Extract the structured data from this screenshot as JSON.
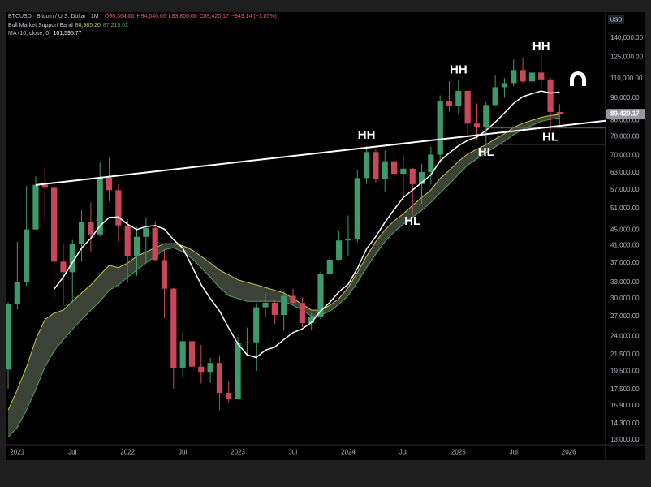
{
  "chart_data": {
    "type": "candlestick",
    "symbol": "BTCUSD · Bitcoin / U.S. Dollar · 1M ·",
    "ohlc_labels": [
      "O90,364.00",
      "H94,640.66",
      "L83,800.00",
      "C89,420.17",
      "−949.14 (−1.05%)"
    ],
    "currency": "USD",
    "x": [
      "2020-12",
      "2021-01",
      "2021-02",
      "2021-03",
      "2021-04",
      "2021-05",
      "2021-06",
      "2021-07",
      "2021-08",
      "2021-09",
      "2021-10",
      "2021-11",
      "2021-12",
      "2022-01",
      "2022-02",
      "2022-03",
      "2022-04",
      "2022-05",
      "2022-06",
      "2022-07",
      "2022-08",
      "2022-09",
      "2022-10",
      "2022-11",
      "2022-12",
      "2023-01",
      "2023-02",
      "2023-03",
      "2023-04",
      "2023-05",
      "2023-06",
      "2023-07",
      "2023-08",
      "2023-09",
      "2023-10",
      "2023-11",
      "2023-12",
      "2024-01",
      "2024-02",
      "2024-03",
      "2024-04",
      "2024-05",
      "2024-06",
      "2024-07",
      "2024-08",
      "2024-09",
      "2024-10",
      "2024-11",
      "2024-12",
      "2025-01",
      "2025-02",
      "2025-03",
      "2025-04",
      "2025-05",
      "2025-06",
      "2025-07",
      "2025-08",
      "2025-09",
      "2025-10",
      "2025-11",
      "2025-12"
    ],
    "open": [
      19700,
      28990,
      33110,
      45140,
      58740,
      57720,
      37300,
      35040,
      41460,
      47100,
      43820,
      61300,
      56900,
      46210,
      38470,
      43190,
      45540,
      37640,
      31790,
      19930,
      23300,
      20050,
      19430,
      20490,
      17170,
      16540,
      23130,
      23150,
      28480,
      29250,
      27220,
      30470,
      29230,
      25940,
      26970,
      34650,
      37720,
      42280,
      42580,
      61130,
      71290,
      60670,
      67520,
      62680,
      64620,
      58970,
      63330,
      70220,
      96400,
      93430,
      102400,
      84370,
      82550,
      94170,
      104600,
      107140,
      115760,
      108240,
      114050,
      109550,
      90364
    ],
    "high": [
      29300,
      41950,
      58350,
      61780,
      64850,
      59500,
      41300,
      42400,
      50500,
      52900,
      67000,
      69000,
      59050,
      47990,
      45800,
      48200,
      47400,
      40000,
      31950,
      24700,
      25200,
      22800,
      21100,
      21450,
      18400,
      23950,
      25250,
      29200,
      31000,
      29850,
      31400,
      31800,
      30200,
      27500,
      35200,
      38400,
      44700,
      48970,
      64000,
      73800,
      72800,
      71950,
      71950,
      70000,
      65000,
      66500,
      73600,
      99600,
      108350,
      109300,
      102500,
      95000,
      95800,
      112000,
      110400,
      123200,
      124500,
      117900,
      126200,
      110600,
      94640.66
    ],
    "low": [
      17600,
      28130,
      32300,
      45000,
      47000,
      30000,
      28800,
      29300,
      37300,
      39600,
      43300,
      53300,
      42000,
      32900,
      34300,
      37100,
      37600,
      26700,
      17600,
      18800,
      19600,
      18150,
      18200,
      15480,
      16250,
      16500,
      21400,
      19550,
      26950,
      25800,
      24800,
      28900,
      25300,
      24900,
      26550,
      34100,
      37600,
      38500,
      41880,
      59000,
      59600,
      56500,
      58400,
      53500,
      49000,
      52550,
      58900,
      66800,
      90500,
      89200,
      78200,
      76600,
      74400,
      93400,
      98200,
      105200,
      107300,
      107200,
      103500,
      80600,
      83800
    ],
    "close": [
      28990,
      33110,
      45140,
      58740,
      57720,
      37300,
      35040,
      41460,
      47100,
      43820,
      61300,
      56900,
      46210,
      38470,
      43190,
      45540,
      37640,
      31790,
      19930,
      23300,
      20050,
      19430,
      20490,
      17170,
      16540,
      23130,
      23150,
      28480,
      29250,
      27220,
      30470,
      29230,
      25940,
      26970,
      34650,
      37720,
      42280,
      42580,
      61130,
      71290,
      60670,
      67520,
      62680,
      64620,
      58970,
      63330,
      70220,
      96400,
      93430,
      102400,
      84370,
      82550,
      94170,
      104600,
      107140,
      115760,
      108240,
      114050,
      109550,
      90360,
      89420.17
    ],
    "up_color": "#3f9a6b",
    "down_color": "#c9475b",
    "last_price_label": "89,420.17",
    "band": {
      "name": "Bull Market Support Band",
      "fill": "#6b7a62",
      "lines": [
        {
          "color": "#c9c84f",
          "value_label": "88,985.20",
          "values": [
            15500,
            17500,
            20000,
            23500,
            26500,
            27500,
            28000,
            29500,
            31000,
            32500,
            34500,
            36500,
            36000,
            37000,
            38500,
            39500,
            40500,
            41500,
            41500,
            41000,
            40000,
            38500,
            37000,
            35500,
            34500,
            33500,
            33000,
            32500,
            32000,
            31500,
            31000,
            30000,
            29000,
            28000,
            28000,
            28800,
            30000,
            32000,
            35000,
            38500,
            42000,
            45000,
            47500,
            49500,
            52000,
            54500,
            57000,
            61000,
            64000,
            67500,
            70500,
            72500,
            74500,
            77000,
            79500,
            82500,
            84500,
            86000,
            87500,
            88500,
            88985.2
          ]
        },
        {
          "color": "#4fa35e",
          "value_label": "87,215.02",
          "values": [
            13200,
            14000,
            15500,
            17500,
            20000,
            22000,
            23500,
            25000,
            26500,
            28000,
            29500,
            31500,
            32500,
            34000,
            35500,
            37000,
            38500,
            40000,
            40500,
            39500,
            38000,
            36000,
            34000,
            32000,
            30500,
            30000,
            29500,
            29500,
            29500,
            29500,
            29500,
            28800,
            28000,
            27000,
            27200,
            27800,
            29000,
            30500,
            33000,
            36000,
            39000,
            42000,
            44500,
            46500,
            48500,
            50500,
            53000,
            56000,
            59000,
            62500,
            66000,
            68500,
            71000,
            73500,
            76000,
            79000,
            81500,
            83500,
            85500,
            86500,
            87215.02
          ]
        }
      ]
    },
    "ma": {
      "name": "MA (10, close, 0)",
      "color": "#ffffff",
      "value_label": "101,595.77",
      "values": [
        null,
        null,
        null,
        null,
        null,
        31693,
        34032,
        37100,
        40430,
        42842,
        46073,
        48452,
        48559,
        46532,
        45079,
        45903,
        46163,
        45196,
        42479,
        40427,
        36302,
        32555,
        29983,
        27853,
        25188,
        22947,
        21498,
        21167,
        22099,
        22491,
        23533,
        24513,
        25058,
        26038,
        27849,
        29308,
        31221,
        32631,
        35819,
        40226,
        43246,
        47075,
        50749,
        54514,
        56946,
        59507,
        62301,
        67683,
        70913,
        74024,
        76394,
        77897,
        81046,
        85044,
        89861,
        95104,
        98906,
        100671,
        102283,
        101079,
        101595.77
      ]
    },
    "trendline": {
      "x": [
        "2021-03",
        "2026-05"
      ],
      "y": [
        58700,
        85800
      ],
      "color": "#ffffff"
    },
    "zone": {
      "x": [
        "2025-04",
        "2026-05"
      ],
      "y": [
        74600,
        82200
      ]
    },
    "annotations": [
      {
        "text": "HH",
        "x": "2024-03",
        "y": 78600
      },
      {
        "text": "HH",
        "x": "2025-01",
        "y": 115600
      },
      {
        "text": "HH",
        "x": "2025-10",
        "y": 132700
      },
      {
        "text": "HL",
        "x": "2024-08",
        "y": 47300
      },
      {
        "text": "HL",
        "x": "2025-04",
        "y": 71100
      },
      {
        "text": "HL",
        "x": "2025-11",
        "y": 77600
      }
    ],
    "xlim": [
      "2020-12",
      "2026-05"
    ],
    "xticks": [
      {
        "value": "2021-01",
        "label": "2021"
      },
      {
        "value": "2021-07",
        "label": "Jul"
      },
      {
        "value": "2022-01",
        "label": "2022"
      },
      {
        "value": "2022-07",
        "label": "Jul"
      },
      {
        "value": "2023-01",
        "label": "2023"
      },
      {
        "value": "2023-07",
        "label": "Jul"
      },
      {
        "value": "2024-01",
        "label": "2024"
      },
      {
        "value": "2024-07",
        "label": "Jul"
      },
      {
        "value": "2025-01",
        "label": "2025"
      },
      {
        "value": "2025-07",
        "label": "Jul"
      },
      {
        "value": "2026-01",
        "label": "2026"
      }
    ],
    "ylim": [
      12630,
      163000
    ],
    "log_scale": true,
    "grid": false,
    "yticks": [
      {
        "value": 140000,
        "label": "140,000.00"
      },
      {
        "value": 125000,
        "label": "125,000.00"
      },
      {
        "value": 110000,
        "label": "110,000.00"
      },
      {
        "value": 98000,
        "label": "98,000.00"
      },
      {
        "value": 86000,
        "label": "86,000.00"
      },
      {
        "value": 78000,
        "label": "78,000.00"
      },
      {
        "value": 70000,
        "label": "70,000.00"
      },
      {
        "value": 63000,
        "label": "63,000.00"
      },
      {
        "value": 57000,
        "label": "57,000.00"
      },
      {
        "value": 51000,
        "label": "51,000.00"
      },
      {
        "value": 45000,
        "label": "45,000.00"
      },
      {
        "value": 41000,
        "label": "41,000.00"
      },
      {
        "value": 37000,
        "label": "37,000.00"
      },
      {
        "value": 33000,
        "label": "33,000.00"
      },
      {
        "value": 30000,
        "label": "30,000.00"
      },
      {
        "value": 27000,
        "label": "27,000.00"
      },
      {
        "value": 24000,
        "label": "24,000.00"
      },
      {
        "value": 21500,
        "label": "21,500.00"
      },
      {
        "value": 19500,
        "label": "19,500.00"
      },
      {
        "value": 17500,
        "label": "17,500.00"
      },
      {
        "value": 15900,
        "label": "15,900.00"
      },
      {
        "value": 14300,
        "label": "14,300.00"
      },
      {
        "value": 13000,
        "label": "13,000.00"
      }
    ]
  }
}
